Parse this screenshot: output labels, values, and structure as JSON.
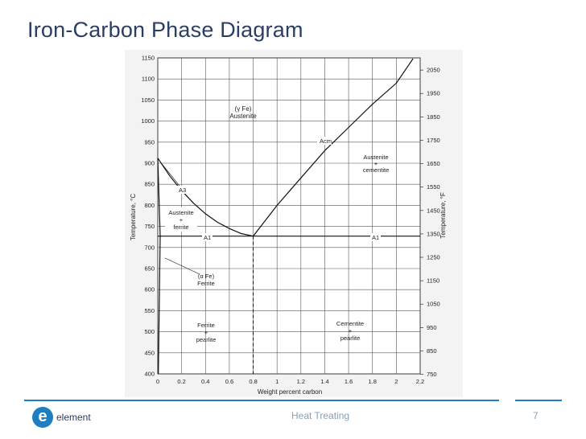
{
  "slide": {
    "title": "Iron-Carbon Phase Diagram",
    "footer_text": "Heat Treating",
    "page_number": "7",
    "logo": {
      "icon": "e",
      "text": "element",
      "color": "#1d7fc1"
    },
    "title_color": "#2b3e63",
    "accent_color": "#1d7fc1"
  },
  "diagram": {
    "x_axis": {
      "label": "Weight percent carbon",
      "ticks": [
        "0",
        "0.2",
        "0.4",
        "0.6",
        "0.8",
        "1",
        "1.2",
        "1.4",
        "1.6",
        "1.8",
        "2",
        "2.2"
      ],
      "range": [
        0,
        2.2
      ]
    },
    "y_axis_left": {
      "label": "Temperature, °C",
      "ticks": [
        "400",
        "450",
        "500",
        "550",
        "600",
        "650",
        "700",
        "750",
        "800",
        "850",
        "900",
        "950",
        "1000",
        "1050",
        "1100",
        "1150"
      ],
      "range": [
        400,
        1150
      ]
    },
    "y_axis_right": {
      "label": "Temperature, °F",
      "ticks": [
        "750",
        "850",
        "950",
        "1050",
        "1150",
        "1250",
        "1350",
        "1450",
        "1550",
        "1650",
        "1750",
        "1850",
        "1950",
        "2050"
      ]
    },
    "region_labels": {
      "austenite": [
        "(γ Fe)",
        "Austenite"
      ],
      "austenite_cementite": [
        "Austenite",
        "+",
        "cementite"
      ],
      "austenite_ferrite": [
        "Austenite",
        "+",
        "ferrite"
      ],
      "ferrite": [
        "(α Fe)",
        "Ferrite"
      ],
      "ferrite_pearlite": [
        "Ferrite",
        "+",
        "pearlite"
      ],
      "cementite_pearlite": [
        "Cementite",
        "+",
        "pearlite"
      ]
    },
    "line_labels": {
      "a3": "A3",
      "acm": "Acm",
      "a1_left": "A1",
      "a1_right": "A1"
    },
    "curves": {
      "a3": [
        [
          0,
          912
        ],
        [
          0.1,
          870
        ],
        [
          0.2,
          835
        ],
        [
          0.3,
          805
        ],
        [
          0.4,
          780
        ],
        [
          0.5,
          760
        ],
        [
          0.6,
          745
        ],
        [
          0.7,
          733
        ],
        [
          0.8,
          727
        ]
      ],
      "acm": [
        [
          0.8,
          727
        ],
        [
          1.0,
          800
        ],
        [
          1.2,
          865
        ],
        [
          1.4,
          930
        ],
        [
          1.6,
          985
        ],
        [
          1.8,
          1040
        ],
        [
          2.0,
          1090
        ],
        [
          2.14,
          1148
        ]
      ],
      "eutectoid_line": [
        [
          0,
          727
        ],
        [
          2.2,
          727
        ]
      ],
      "eutectoid_composition": 0.8,
      "ferrite_boundary_upper": [
        [
          0,
          912
        ],
        [
          0.02,
          727
        ]
      ],
      "ferrite_boundary_lower": [
        [
          0.02,
          727
        ],
        [
          0.005,
          400
        ]
      ]
    }
  }
}
